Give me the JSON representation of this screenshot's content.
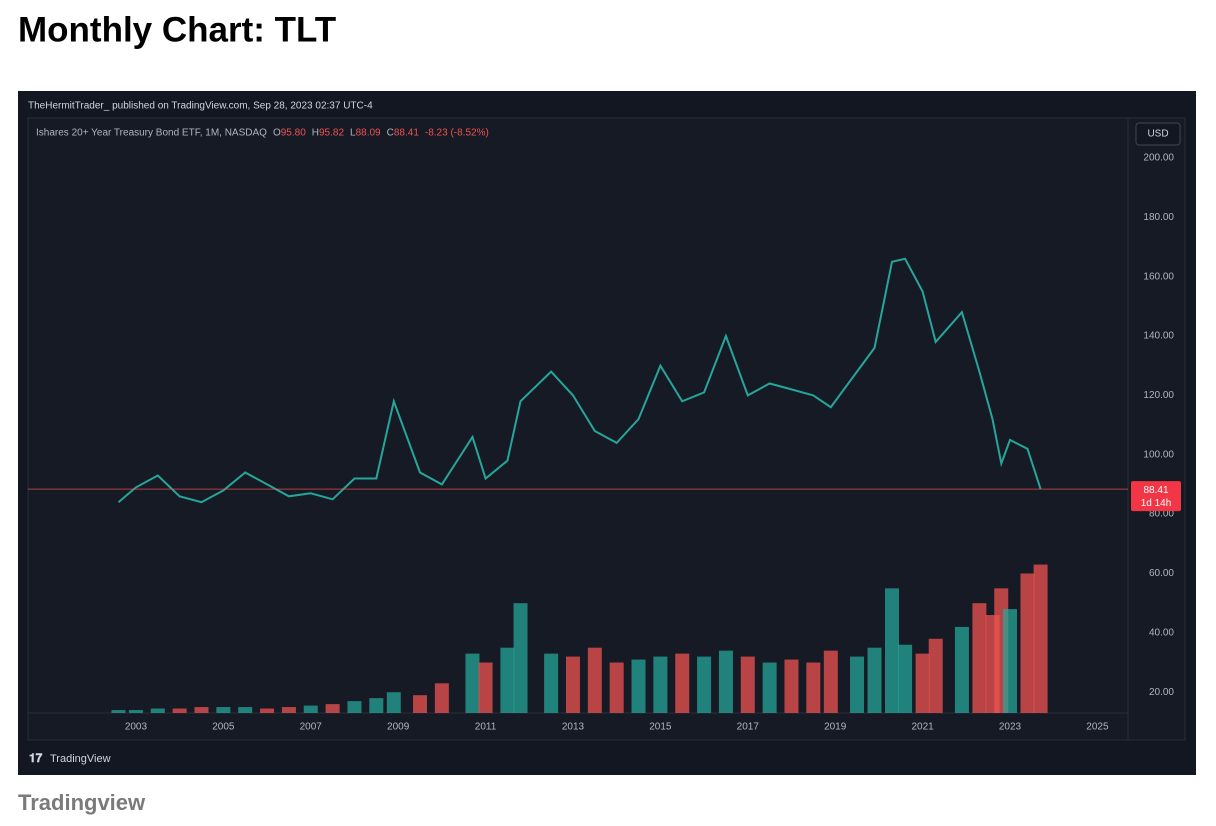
{
  "header": {
    "title": "Monthly Chart: TLT"
  },
  "caption": "Tradingview",
  "chart_data": {
    "type": "line",
    "publisher_line": "TheHermitTrader_ published on TradingView.com, Sep 28, 2023 02:37 UTC-4",
    "symbol_line": "Ishares 20+ Year Treasury Bond ETF, 1M, NASDAQ",
    "ohlc": [
      {
        "key": "O",
        "value": "95.80"
      },
      {
        "key": "H",
        "value": "95.82"
      },
      {
        "key": "L",
        "value": "88.09"
      },
      {
        "key": "C",
        "value": "88.41"
      }
    ],
    "change": "-8.23 (-8.52%)",
    "currency": "USD",
    "logo": "TradingView",
    "price_tag": {
      "value": 88.41,
      "label": "88.41",
      "countdown": "1d 14h"
    },
    "x": [
      2002.6,
      2003.0,
      2003.5,
      2004.0,
      2004.5,
      2005.0,
      2005.5,
      2006.0,
      2006.5,
      2007.0,
      2007.5,
      2008.0,
      2008.5,
      2008.9,
      2009.5,
      2010.0,
      2010.7,
      2011.0,
      2011.5,
      2011.8,
      2012.5,
      2013.0,
      2013.5,
      2014.0,
      2014.5,
      2015.0,
      2015.5,
      2016.0,
      2016.5,
      2017.0,
      2017.5,
      2018.0,
      2018.5,
      2018.9,
      2019.5,
      2019.9,
      2020.3,
      2020.6,
      2021.0,
      2021.3,
      2021.9,
      2022.3,
      2022.6,
      2022.8,
      2023.0,
      2023.4,
      2023.7
    ],
    "series": [
      {
        "name": "Price",
        "color": "#26a69a",
        "values": [
          84,
          89,
          93,
          86,
          84,
          88,
          94,
          90,
          86,
          87,
          85,
          92,
          92,
          118,
          94,
          90,
          106,
          92,
          98,
          118,
          128,
          120,
          108,
          104,
          112,
          130,
          118,
          121,
          140,
          120,
          124,
          122,
          120,
          116,
          128,
          136,
          165,
          166,
          155,
          138,
          148,
          128,
          112,
          97,
          105,
          102,
          88.41
        ]
      },
      {
        "name": "Volume",
        "color": "#ef5350",
        "values": [
          14,
          14,
          14.5,
          14.5,
          15,
          15,
          15,
          14.5,
          15,
          15.5,
          16,
          17,
          18,
          20,
          19,
          23,
          33,
          30,
          35,
          50,
          33,
          32,
          35,
          30,
          31,
          32,
          33,
          32,
          34,
          32,
          30,
          31,
          30,
          34,
          32,
          35,
          55,
          36,
          33,
          38,
          42,
          50,
          46,
          55,
          48,
          60,
          63
        ]
      }
    ],
    "xlim": [
      2000.53,
      2025.7
    ],
    "xticks": [
      2003,
      2005,
      2007,
      2009,
      2011,
      2013,
      2015,
      2017,
      2019,
      2021,
      2023,
      2025
    ],
    "ylim": [
      13,
      204
    ],
    "yticks": [
      {
        "value": 20,
        "label": "20.00"
      },
      {
        "value": 40,
        "label": "40.00"
      },
      {
        "value": 60,
        "label": "60.00"
      },
      {
        "value": 80,
        "label": "80.00"
      },
      {
        "value": 100,
        "label": "100.00"
      },
      {
        "value": 120,
        "label": "120.00"
      },
      {
        "value": 140,
        "label": "140.00"
      },
      {
        "value": 160,
        "label": "160.00"
      },
      {
        "value": 180,
        "label": "180.00"
      },
      {
        "value": 200,
        "label": "200.00"
      }
    ],
    "grid": false,
    "up_color": "#26a69a",
    "down_color": "#ef5350"
  }
}
